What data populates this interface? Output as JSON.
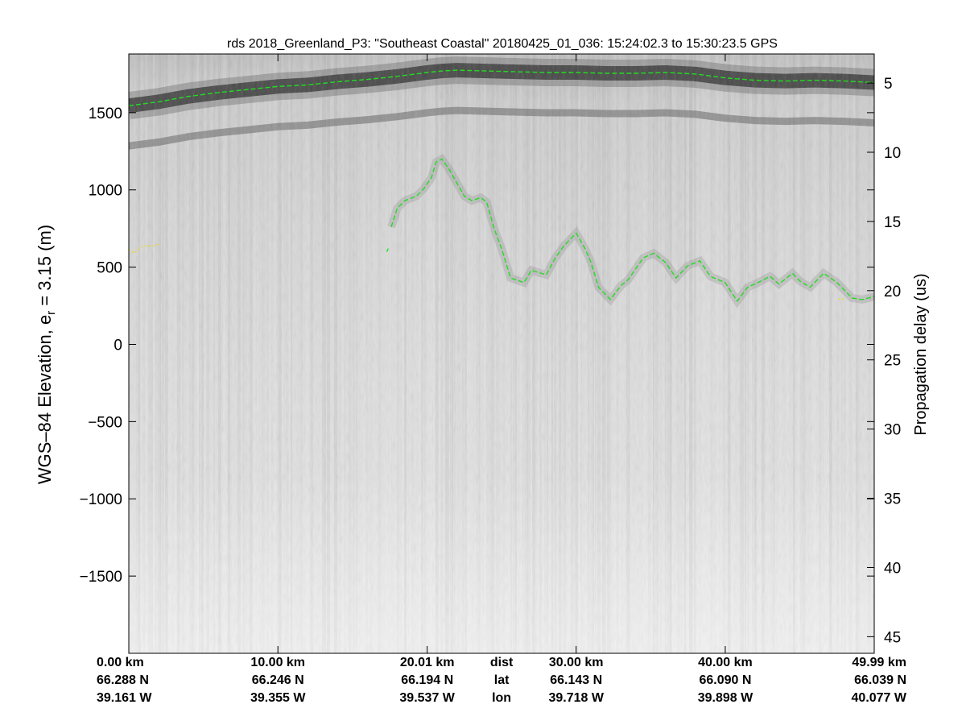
{
  "chart_data": {
    "type": "radargram",
    "title": "rds 2018_Greenland_P3: \"Southeast Coastal\"  20180425_01_036: 15:24:02.3 to 15:30:23.5 GPS",
    "ylabel_left": {
      "main": "WGS–84 Elevation, e",
      "sub": "r",
      "tail": " = 3.15 (m)"
    },
    "ylabel_right": "Propagation delay (us)",
    "left_axis": {
      "ylim": [
        -2000,
        1880
      ],
      "ticks": [
        1500,
        1000,
        500,
        0,
        -500,
        -1000,
        -1500
      ],
      "tick_labels": [
        "1500",
        "1000",
        "500",
        "0",
        "−500",
        "−1000",
        "−1500"
      ]
    },
    "right_axis": {
      "range_us": [
        2.9,
        46.2
      ],
      "ticks": [
        5,
        10,
        15,
        20,
        25,
        30,
        35,
        40,
        45
      ],
      "tick_labels": [
        "5",
        "10",
        "15",
        "20",
        "25",
        "30",
        "35",
        "40",
        "45"
      ]
    },
    "xlim_km": [
      0,
      49.99
    ],
    "x_rows": [
      {
        "label": "",
        "values": [
          "0.00 km",
          "10.00 km",
          "20.01 km",
          "dist",
          "30.00 km",
          "40.00 km",
          "49.99 km"
        ]
      },
      {
        "label": "",
        "values": [
          "66.288 N",
          "66.246 N",
          "66.194 N",
          "lat",
          "66.143 N",
          "66.090 N",
          "66.039 N"
        ]
      },
      {
        "label": "",
        "values": [
          "39.161 W",
          "39.355 W",
          "39.537 W",
          "lon",
          "39.718 W",
          "39.898 W",
          "40.077 W"
        ]
      }
    ],
    "x_row_positions_km": [
      0,
      10.0,
      20.01,
      25.0,
      30.0,
      40.0,
      49.99
    ],
    "colormap": "gray",
    "series": [
      {
        "role": "surface",
        "color": "#22dd22",
        "style": "dashed",
        "x": [
          0,
          2,
          4,
          6,
          8,
          10,
          12,
          14,
          16,
          18,
          20,
          21,
          22,
          24,
          26,
          28,
          30,
          32,
          34,
          36,
          38,
          40,
          42,
          44,
          46,
          48,
          49.99
        ],
        "y": [
          1545,
          1570,
          1605,
          1630,
          1650,
          1670,
          1680,
          1700,
          1715,
          1735,
          1760,
          1770,
          1775,
          1770,
          1765,
          1760,
          1760,
          1755,
          1755,
          1760,
          1750,
          1725,
          1710,
          1705,
          1710,
          1705,
          1695
        ]
      },
      {
        "role": "bottom",
        "color": "#22dd22",
        "style": "dashed",
        "x": [
          17.6,
          18.0,
          18.5,
          19.3,
          19.8,
          20.3,
          20.6,
          21.0,
          21.5,
          22.5,
          23.0,
          23.6,
          24.0,
          24.5,
          25.0,
          25.6,
          26.5,
          27.0,
          28.0,
          28.6,
          29.2,
          30.0,
          30.6,
          31.0,
          31.5,
          32.3,
          33.0,
          33.5,
          34.5,
          35.2,
          36.0,
          36.7,
          37.5,
          38.3,
          39.0,
          40.0,
          40.8,
          41.5,
          42.2,
          43.0,
          43.6,
          44.5,
          45.0,
          45.7,
          46.6,
          47.5,
          48.5,
          49.2,
          49.99
        ],
        "y": [
          760,
          880,
          930,
          960,
          1010,
          1080,
          1180,
          1200,
          1130,
          960,
          930,
          950,
          920,
          750,
          620,
          430,
          400,
          480,
          450,
          560,
          640,
          720,
          620,
          530,
          370,
          290,
          380,
          420,
          560,
          590,
          530,
          430,
          510,
          540,
          440,
          400,
          280,
          370,
          400,
          440,
          390,
          460,
          410,
          370,
          460,
          400,
          300,
          290,
          310
        ]
      },
      {
        "role": "bottom-fragment",
        "color": "#22dd22",
        "style": "dashed",
        "x": [
          17.3,
          17.4
        ],
        "y": [
          600,
          620
        ]
      },
      {
        "role": "bottom-quality-low",
        "color": "#e8d81e",
        "style": "dotted",
        "x": [
          0.0,
          0.4,
          0.8,
          1.2,
          1.6,
          2.0
        ],
        "y": [
          615,
          590,
          630,
          640,
          635,
          650
        ]
      },
      {
        "role": "bottom-quality-low",
        "color": "#e8d81e",
        "style": "dotted",
        "x": [
          47.6,
          47.8,
          48.0
        ],
        "y": [
          290,
          300,
          285
        ]
      }
    ],
    "grid": false,
    "legend": "none"
  }
}
